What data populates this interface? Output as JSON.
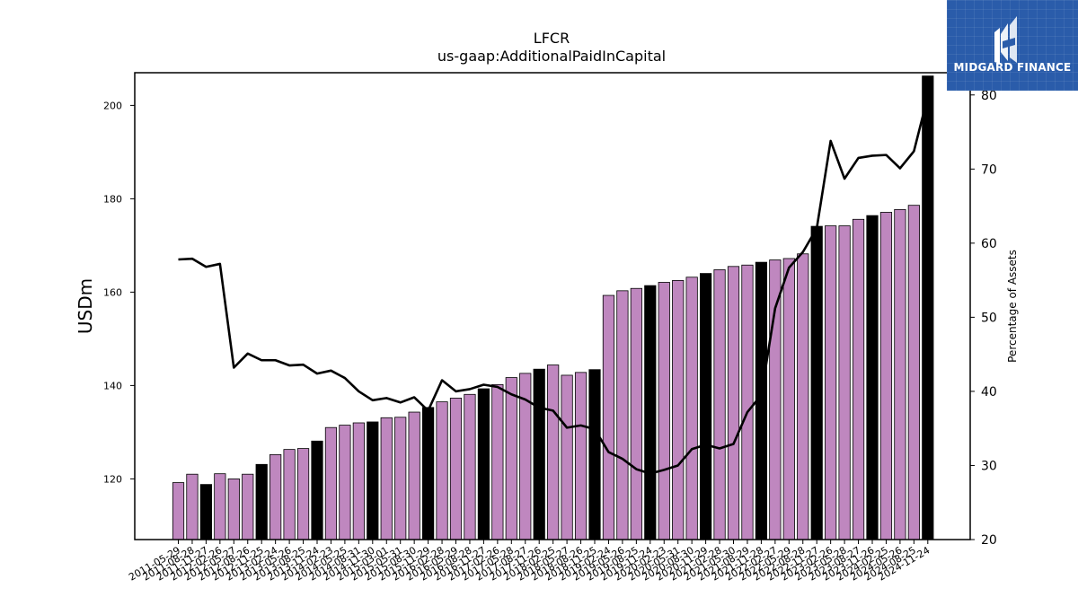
{
  "logo": {
    "text": "MIDGARD FINANCE"
  },
  "chart_data": {
    "type": "bar",
    "title": "LFCR",
    "subtitle": "us-gaap:AdditionalPaidInCapital",
    "ylabel": "USDm",
    "y2label": "Percentage of Assets",
    "ylim": [
      107,
      207
    ],
    "y2lim": [
      20,
      83
    ],
    "yticks": [
      120,
      140,
      160,
      180,
      200
    ],
    "y2ticks": [
      20,
      30,
      40,
      50,
      60,
      70,
      80
    ],
    "grid": false,
    "colors": {
      "bar": "#bf87bf",
      "bar_highlight": "#000000",
      "line": "#000000"
    },
    "categories": [
      "2011-05-29",
      "2011-08-28",
      "2011-11-27",
      "2012-02-26",
      "2012-05-27",
      "2012-08-26",
      "2012-11-25",
      "2013-02-24",
      "2013-05-26",
      "2013-08-25",
      "2013-11-24",
      "2014-02-23",
      "2014-05-25",
      "2014-08-31",
      "2014-11-30",
      "2015-03-01",
      "2015-05-31",
      "2015-08-30",
      "2015-11-29",
      "2016-02-28",
      "2016-05-29",
      "2016-08-28",
      "2016-11-27",
      "2017-02-26",
      "2017-05-28",
      "2017-08-27",
      "2017-11-26",
      "2018-02-25",
      "2018-05-27",
      "2018-08-26",
      "2018-11-25",
      "2019-02-24",
      "2019-05-26",
      "2019-08-25",
      "2019-11-24",
      "2020-02-23",
      "2020-05-31",
      "2020-08-30",
      "2020-11-29",
      "2021-02-28",
      "2021-05-30",
      "2021-08-29",
      "2021-11-28",
      "2022-02-27",
      "2022-05-29",
      "2022-08-28",
      "2022-11-27",
      "2023-02-26",
      "2023-05-28",
      "2023-08-27",
      "2023-11-26",
      "2024-02-25",
      "2024-05-26",
      "2024-08-25",
      "2024-11-24"
    ],
    "tick_labels": [
      "2011-05-29",
      "2011-08-28",
      "2011-11-27",
      "2012-02-26",
      "2012-05-27",
      "2012-08-26",
      "2012-11-25",
      "2013-02-24",
      "2013-05-26",
      "2013-08-25",
      "2013-11-24",
      "2014-02-23",
      "2014-05-25",
      "2014-08-31",
      "2014-11-30",
      "2015-03-01",
      "2015-05-31",
      "2015-08-30",
      "2015-11-29",
      "2016-02-28",
      "2016-05-29",
      "2016-08-28",
      "2016-11-27",
      "2017-02-26",
      "2017-05-28",
      "2017-08-27",
      "2017-11-26",
      "2018-02-25",
      "2018-05-27",
      "2018-08-26",
      "2018-11-25",
      "2019-02-24",
      "2019-05-26",
      "2019-08-25",
      "2019-11-24",
      "2020-02-23",
      "2020-05-31",
      "2020-08-30",
      "2020-11-29",
      "2021-02-28",
      "2021-05-30",
      "2021-08-29",
      "2021-11-28",
      "2022-02-27",
      "2022-05-29",
      "2022-08-28",
      "2022-11-27",
      "2023-02-26",
      "2023-05-28",
      "2023-08-27",
      "2023-11-26",
      "2024-02-25",
      "2024-05-26",
      "2024-08-25",
      "2024-11-24"
    ],
    "highlight": [
      false,
      false,
      true,
      false,
      false,
      false,
      true,
      false,
      false,
      false,
      true,
      false,
      false,
      false,
      true,
      false,
      false,
      false,
      true,
      false,
      false,
      false,
      true,
      false,
      false,
      false,
      true,
      false,
      false,
      false,
      true,
      false,
      false,
      false,
      true,
      false,
      false,
      false,
      true,
      false,
      false,
      false,
      true,
      false,
      false,
      false,
      true,
      false,
      false,
      false,
      true,
      false,
      false,
      false,
      true
    ],
    "series": [
      {
        "name": "USDm",
        "axis": "left",
        "kind": "bar",
        "values": [
          119.2,
          121.0,
          118.8,
          121.1,
          120.0,
          121.0,
          123.1,
          125.2,
          126.3,
          126.5,
          128.1,
          131.0,
          131.5,
          132.0,
          132.2,
          133.1,
          133.2,
          134.3,
          135.3,
          136.5,
          137.3,
          138.1,
          139.3,
          140.2,
          141.7,
          142.6,
          143.5,
          144.4,
          142.2,
          142.8,
          143.4,
          159.3,
          160.3,
          160.8,
          161.4,
          162.1,
          162.5,
          163.2,
          164.0,
          164.8,
          165.5,
          165.8,
          166.4,
          166.9,
          167.2,
          168.2,
          174.1,
          174.2,
          174.2,
          175.6,
          176.4,
          177.1,
          177.7,
          178.6,
          206.3
        ]
      },
      {
        "name": "Percentage of Assets",
        "axis": "right",
        "kind": "line",
        "values": [
          57.8,
          57.9,
          56.8,
          57.2,
          43.2,
          45.1,
          44.2,
          44.2,
          43.5,
          43.6,
          42.4,
          42.8,
          41.8,
          40.0,
          38.8,
          39.1,
          38.5,
          39.2,
          37.4,
          41.5,
          40.0,
          40.3,
          40.9,
          40.6,
          39.6,
          38.9,
          37.8,
          37.4,
          35.1,
          35.4,
          34.9,
          31.8,
          30.9,
          29.5,
          28.9,
          29.4,
          30.0,
          32.2,
          32.8,
          32.3,
          32.9,
          37.2,
          39.5,
          51.2,
          56.7,
          58.8,
          62.0,
          73.8,
          68.7,
          71.5,
          71.8,
          71.9,
          70.1,
          72.4,
          79.8
        ]
      }
    ]
  }
}
